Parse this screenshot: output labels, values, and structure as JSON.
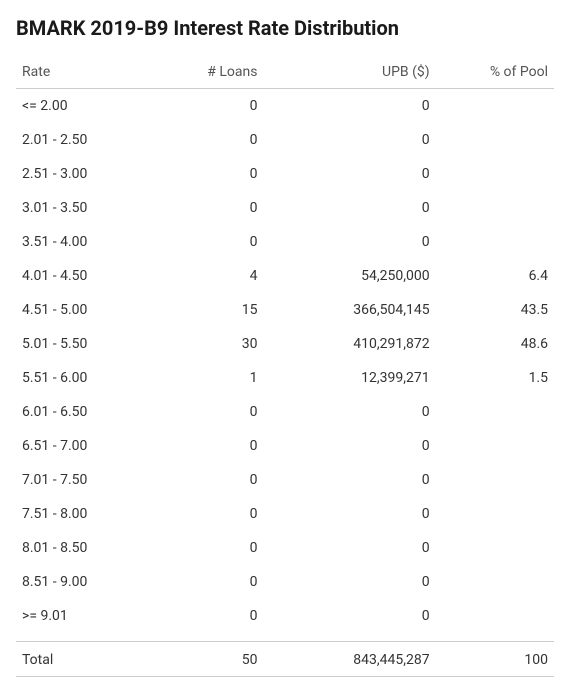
{
  "title": "BMARK 2019-B9 Interest Rate Distribution",
  "columns": [
    "Rate",
    "# Loans",
    "UPB ($)",
    "% of Pool"
  ],
  "rows": [
    {
      "rate": "<= 2.00",
      "loans": "0",
      "upb": "0",
      "pct": ""
    },
    {
      "rate": "2.01 - 2.50",
      "loans": "0",
      "upb": "0",
      "pct": ""
    },
    {
      "rate": "2.51 - 3.00",
      "loans": "0",
      "upb": "0",
      "pct": ""
    },
    {
      "rate": "3.01 - 3.50",
      "loans": "0",
      "upb": "0",
      "pct": ""
    },
    {
      "rate": "3.51 - 4.00",
      "loans": "0",
      "upb": "0",
      "pct": ""
    },
    {
      "rate": "4.01 - 4.50",
      "loans": "4",
      "upb": "54,250,000",
      "pct": "6.4"
    },
    {
      "rate": "4.51 - 5.00",
      "loans": "15",
      "upb": "366,504,145",
      "pct": "43.5"
    },
    {
      "rate": "5.01 - 5.50",
      "loans": "30",
      "upb": "410,291,872",
      "pct": "48.6"
    },
    {
      "rate": "5.51 - 6.00",
      "loans": "1",
      "upb": "12,399,271",
      "pct": "1.5"
    },
    {
      "rate": "6.01 - 6.50",
      "loans": "0",
      "upb": "0",
      "pct": ""
    },
    {
      "rate": "6.51 - 7.00",
      "loans": "0",
      "upb": "0",
      "pct": ""
    },
    {
      "rate": "7.01 - 7.50",
      "loans": "0",
      "upb": "0",
      "pct": ""
    },
    {
      "rate": "7.51 - 8.00",
      "loans": "0",
      "upb": "0",
      "pct": ""
    },
    {
      "rate": "8.01 - 8.50",
      "loans": "0",
      "upb": "0",
      "pct": ""
    },
    {
      "rate": "8.51 - 9.00",
      "loans": "0",
      "upb": "0",
      "pct": ""
    },
    {
      "rate": ">= 9.01",
      "loans": "0",
      "upb": "0",
      "pct": ""
    }
  ],
  "total": {
    "label": "Total",
    "loans": "50",
    "upb": "843,445,287",
    "pct": "100"
  },
  "styling": {
    "title_fontsize": 20,
    "body_fontsize": 14,
    "text_color": "#333333",
    "title_color": "#1a1a1a",
    "header_color": "#555555",
    "border_color": "#cccccc",
    "background_color": "#ffffff",
    "column_widths_pct": [
      26,
      20,
      32,
      22
    ],
    "column_align": [
      "left",
      "right",
      "right",
      "right"
    ]
  }
}
